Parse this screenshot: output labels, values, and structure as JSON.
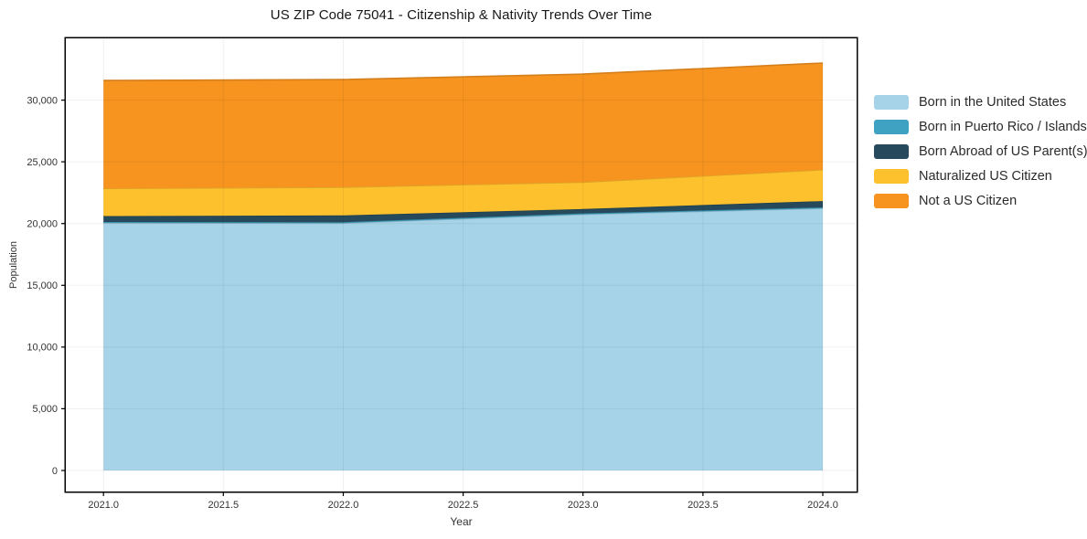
{
  "chart_data": {
    "type": "area",
    "stacked": true,
    "title": "US ZIP Code 75041 - Citizenship & Nativity Trends Over Time",
    "xlabel": "Year",
    "ylabel": "Population",
    "x": [
      2021,
      2022,
      2023,
      2024
    ],
    "series": [
      {
        "name": "Born in the United States",
        "color": "#A6D3E8",
        "values": [
          20050,
          20030,
          20740,
          21230
        ]
      },
      {
        "name": "Born in Puerto Rico / Islands",
        "color": "#3FA2C2",
        "values": [
          80,
          80,
          80,
          80
        ]
      },
      {
        "name": "Born Abroad of US Parent(s)",
        "color": "#264A5C",
        "values": [
          480,
          550,
          360,
          510
        ]
      },
      {
        "name": "Naturalized US Citizen",
        "color": "#FDC12D",
        "values": [
          2230,
          2290,
          2170,
          2540
        ]
      },
      {
        "name": "Not a US Citizen",
        "color": "#F6941F",
        "values": [
          8750,
          8710,
          8760,
          8640
        ]
      }
    ],
    "stack_totals": [
      31590,
      31660,
      32110,
      33000
    ],
    "xticks": {
      "values": [
        2021.0,
        2021.5,
        2022.0,
        2022.5,
        2023.0,
        2023.5,
        2024.0
      ],
      "labels": [
        "2021.0",
        "2021.5",
        "2022.0",
        "2022.5",
        "2023.0",
        "2023.5",
        "2024.0"
      ]
    },
    "yticks": {
      "values": [
        0,
        5000,
        10000,
        15000,
        20000,
        25000,
        30000
      ],
      "labels": [
        "0",
        "5,000",
        "10,000",
        "15,000",
        "20,000",
        "25,000",
        "30,000"
      ]
    },
    "xlim": [
      2020.843,
      2024.141
    ],
    "ylim": [
      -1700,
      35000
    ],
    "grid": true,
    "legend_position": "right",
    "colors": {
      "axis": "#000000",
      "tick_label": "#333333",
      "grid": "rgba(0,0,0,0.06)",
      "background": "#ffffff"
    }
  }
}
